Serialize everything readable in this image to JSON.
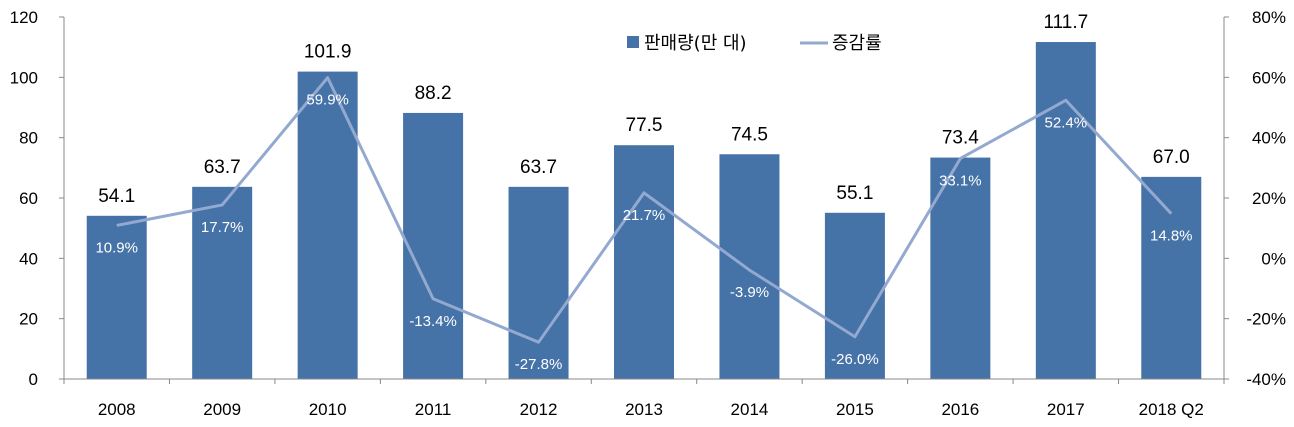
{
  "chart_data": {
    "type": "bar",
    "categories": [
      "2008",
      "2009",
      "2010",
      "2011",
      "2012",
      "2013",
      "2014",
      "2015",
      "2016",
      "2017",
      "2018 Q2"
    ],
    "series": [
      {
        "name": "판매량(만 대)",
        "kind": "bar",
        "axis": "left",
        "color": "#4572A7",
        "values": [
          54.1,
          63.7,
          101.9,
          88.2,
          63.7,
          77.5,
          74.5,
          55.1,
          73.4,
          111.7,
          67.0
        ],
        "labels": [
          "54.1",
          "63.7",
          "101.9",
          "88.2",
          "63.7",
          "77.5",
          "74.5",
          "55.1",
          "73.4",
          "111.7",
          "67.0"
        ]
      },
      {
        "name": "증감률",
        "kind": "line",
        "axis": "right",
        "color": "#93A9CF",
        "values": [
          10.9,
          17.7,
          59.9,
          -13.4,
          -27.8,
          21.7,
          -3.9,
          -26.0,
          33.1,
          52.4,
          14.8
        ],
        "labels": [
          "10.9%",
          "17.7%",
          "59.9%",
          "-13.4%",
          "-27.8%",
          "21.7%",
          "-3.9%",
          "-26.0%",
          "33.1%",
          "52.4%",
          "14.8%"
        ]
      }
    ],
    "y_left": {
      "range": [
        0,
        120
      ],
      "ticks": [
        0,
        20,
        40,
        60,
        80,
        100,
        120
      ],
      "tick_labels": [
        "0",
        "20",
        "40",
        "60",
        "80",
        "100",
        "120"
      ]
    },
    "y_right": {
      "range": [
        -40,
        80
      ],
      "ticks": [
        -40,
        -20,
        0,
        20,
        40,
        60,
        80
      ],
      "tick_labels": [
        "-40%",
        "-20%",
        "0%",
        "20%",
        "40%",
        "60%",
        "80%"
      ]
    },
    "legend": {
      "position": "top-center",
      "entries": [
        "판매량(만 대)",
        "증감률"
      ]
    },
    "title": "",
    "xlabel": "",
    "ylabel": "",
    "grid": false
  }
}
